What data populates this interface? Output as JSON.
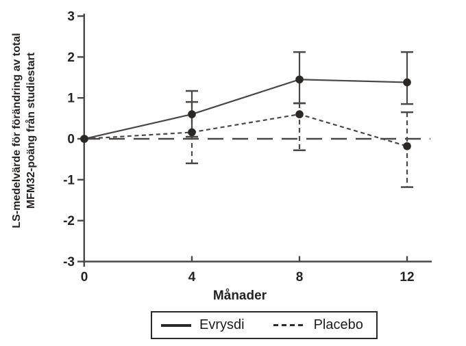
{
  "figure": {
    "background": "#ffffff",
    "line_color": "#4a4643",
    "marker_color": "#2b2724",
    "text_color": "#252220"
  },
  "chart_data": {
    "type": "line",
    "title": "",
    "xlabel": "Månader",
    "ylabel": "LS-medelvärde för förändring av total MFM32-poäng från studiestart",
    "ylabel_lines": [
      "LS-medelvärde för förändring av total",
      "MFM32-poäng från studiestart"
    ],
    "x": [
      0,
      4,
      8,
      12
    ],
    "xtick_labels": [
      "0",
      "4",
      "8",
      "12"
    ],
    "ytick_values": [
      3,
      2,
      1,
      0,
      -1,
      -2,
      -3
    ],
    "ytick_labels": [
      "3",
      "2",
      "1",
      "0",
      "-1",
      "-2",
      "-3"
    ],
    "xlim": [
      0,
      12.9
    ],
    "ylim": [
      -3,
      3
    ],
    "grid": false,
    "reference_line_y": 0,
    "legend_position": "bottom-center",
    "series": [
      {
        "name": "Evrysdi",
        "line_style": "solid",
        "values": [
          0,
          0.6,
          1.45,
          1.38
        ],
        "error_low": [
          null,
          0.05,
          0.87,
          0.85
        ],
        "error_high": [
          null,
          1.17,
          2.12,
          2.12
        ]
      },
      {
        "name": "Placebo",
        "line_style": "dashed",
        "values": [
          0,
          0.16,
          0.6,
          -0.18
        ],
        "error_low": [
          null,
          -0.6,
          -0.28,
          -1.18
        ],
        "error_high": [
          null,
          0.9,
          0.87,
          0.65
        ]
      }
    ]
  }
}
